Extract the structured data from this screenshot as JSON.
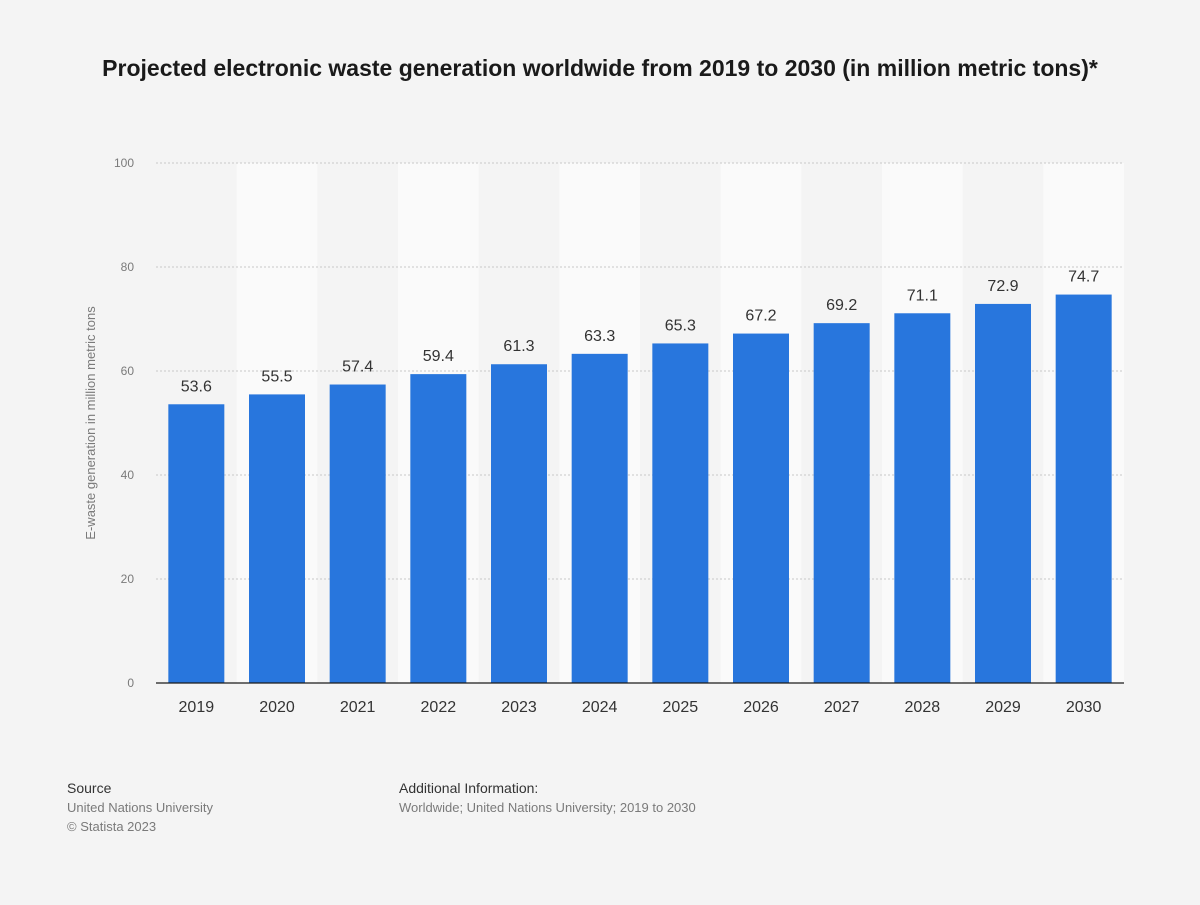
{
  "title": "Projected electronic waste generation worldwide from 2019 to 2030 (in million metric tons)*",
  "colors": {
    "bar": "#2876dd",
    "grid": "#c8c8c8",
    "band": "#fafafa",
    "background": "#f4f4f4"
  },
  "chart_data": {
    "type": "bar",
    "categories": [
      "2019",
      "2020",
      "2021",
      "2022",
      "2023",
      "2024",
      "2025",
      "2026",
      "2027",
      "2028",
      "2029",
      "2030"
    ],
    "values": [
      53.6,
      55.5,
      57.4,
      59.4,
      61.3,
      63.3,
      65.3,
      67.2,
      69.2,
      71.1,
      72.9,
      74.7
    ],
    "value_labels": [
      "53.6",
      "55.5",
      "57.4",
      "59.4",
      "61.3",
      "63.3",
      "65.3",
      "67.2",
      "69.2",
      "71.1",
      "72.9",
      "74.7"
    ],
    "ylabel": "E-waste generation in million metric tons",
    "ylim": [
      0,
      100
    ],
    "yticks": [
      "0",
      "20",
      "40",
      "60",
      "80",
      "100"
    ],
    "grid": true
  },
  "footer": {
    "source_heading": "Source",
    "source_lines": [
      "United Nations University",
      "© Statista 2023"
    ],
    "additional_heading": "Additional Information:",
    "additional_text": "Worldwide; United Nations University; 2019 to 2030"
  }
}
